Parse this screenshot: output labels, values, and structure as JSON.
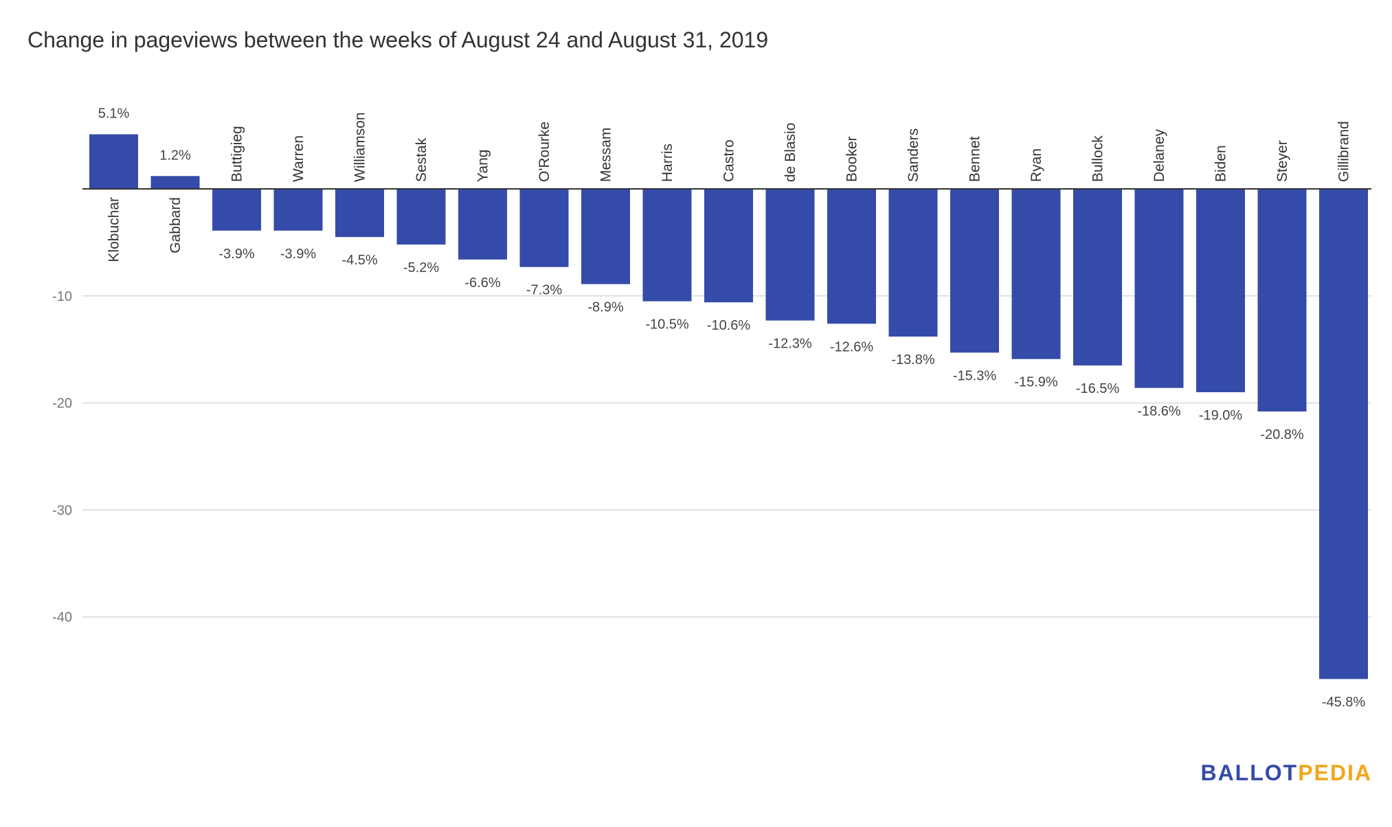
{
  "chart_data": {
    "type": "bar",
    "title": "Change in pageviews between the weeks of August 24 and August 31, 2019",
    "categories": [
      "Klobuchar",
      "Gabbard",
      "Buttigieg",
      "Warren",
      "Williamson",
      "Sestak",
      "Yang",
      "O'Rourke",
      "Messam",
      "Harris",
      "Castro",
      "de Blasio",
      "Booker",
      "Sanders",
      "Bennet",
      "Ryan",
      "Bullock",
      "Delaney",
      "Biden",
      "Steyer",
      "Gillibrand"
    ],
    "values": [
      5.1,
      1.2,
      -3.9,
      -3.9,
      -4.5,
      -5.2,
      -6.6,
      -7.3,
      -8.9,
      -10.5,
      -10.6,
      -12.3,
      -12.6,
      -13.8,
      -15.3,
      -15.9,
      -16.5,
      -18.6,
      -19.0,
      -20.8,
      -45.8
    ],
    "value_labels": [
      "5.1%",
      "1.2%",
      "-3.9%",
      "-3.9%",
      "-4.5%",
      "-5.2%",
      "-6.6%",
      "-7.3%",
      "-8.9%",
      "-10.5%",
      "-10.6%",
      "-12.3%",
      "-12.6%",
      "-13.8%",
      "-15.3%",
      "-15.9%",
      "-16.5%",
      "-18.6%",
      "-19.0%",
      "-20.8%",
      "-45.8%"
    ],
    "y_ticks": [
      -10,
      -20,
      -30,
      -40
    ],
    "ylim": [
      -50,
      5.1
    ],
    "grid": true,
    "bar_color": "#344ba9",
    "xlabel": "",
    "ylabel": ""
  },
  "brand": {
    "part1": "BALLOT",
    "part2": "PEDIA",
    "color1": "#344ba9",
    "color2": "#f2a61c"
  }
}
